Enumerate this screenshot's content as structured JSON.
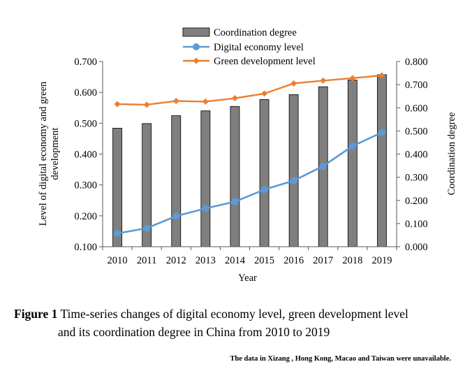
{
  "chart_data": {
    "type": "bar+line",
    "categories": [
      "2010",
      "2011",
      "2012",
      "2013",
      "2014",
      "2015",
      "2016",
      "2017",
      "2018",
      "2019"
    ],
    "series": [
      {
        "name": "Coordination degree",
        "type": "bar",
        "axis": "right",
        "values": [
          0.512,
          0.532,
          0.566,
          0.587,
          0.606,
          0.636,
          0.657,
          0.691,
          0.72,
          0.743
        ]
      },
      {
        "name": "Digital economy level",
        "type": "line",
        "axis": "left",
        "values": [
          0.143,
          0.16,
          0.199,
          0.224,
          0.246,
          0.285,
          0.314,
          0.361,
          0.426,
          0.47
        ]
      },
      {
        "name": "Green development level",
        "type": "line",
        "axis": "left",
        "values": [
          0.562,
          0.56,
          0.572,
          0.57,
          0.581,
          0.596,
          0.629,
          0.638,
          0.646,
          0.655
        ]
      }
    ],
    "xlabel": "Year",
    "ylabel": "Level of digital economy and green development",
    "ylabel_right": "Coordination degree",
    "ylim": [
      0.1,
      0.7
    ],
    "ylim_right": [
      0.0,
      0.8
    ],
    "yticks": [
      "0.100",
      "0.200",
      "0.300",
      "0.400",
      "0.500",
      "0.600",
      "0.700"
    ],
    "yticks_right": [
      "0.000",
      "0.100",
      "0.200",
      "0.300",
      "0.400",
      "0.500",
      "0.600",
      "0.700",
      "0.800"
    ],
    "legend_position": "top-center",
    "colors": {
      "bar": "#7f7f7f",
      "bar_edge": "#000000",
      "digital": "#5b9bd5",
      "green": "#ed7d31"
    }
  },
  "caption": {
    "label": "Figure 1",
    "line1": " Time-series changes of digital economy level, green development level",
    "line2": "and its coordination degree in China from 2010 to 2019"
  },
  "note": "The data in Xizang , Hong Kong, Macao and Taiwan were unavailable."
}
